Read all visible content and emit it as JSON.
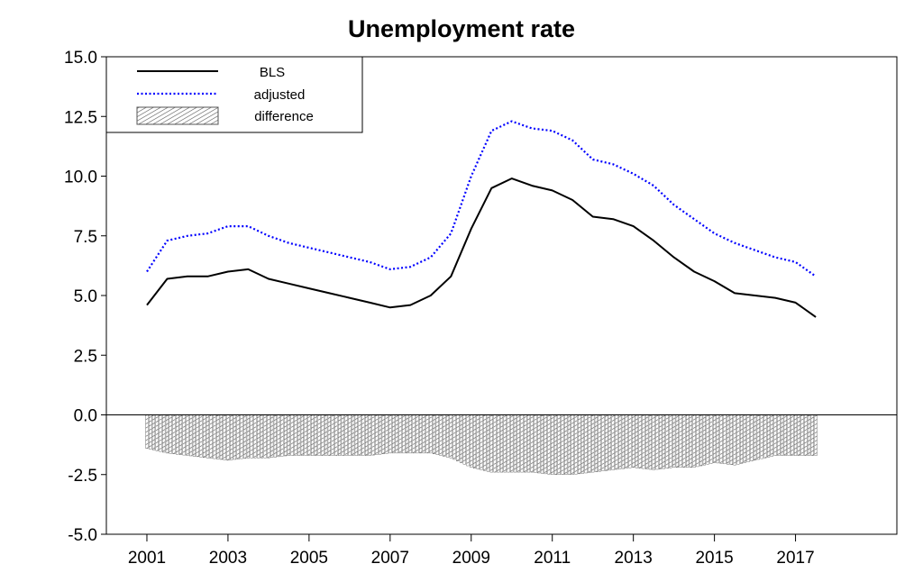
{
  "chart_data": {
    "type": "line",
    "title": "Unemployment rate",
    "xlabel": "",
    "ylabel": "",
    "ylim": [
      -5.0,
      15.0
    ],
    "xlim": [
      2000.0,
      2019.5
    ],
    "yticks": [
      "15.0",
      "12.5",
      "10.0",
      "7.5",
      "5.0",
      "2.5",
      "0.0",
      "-2.5",
      "-5.0"
    ],
    "xticks": [
      "2001",
      "2003",
      "2005",
      "2007",
      "2009",
      "2011",
      "2013",
      "2015",
      "2017"
    ],
    "grid": false,
    "legend_position": "top-left",
    "x": [
      2001.0,
      2001.5,
      2002.0,
      2002.5,
      2003.0,
      2003.5,
      2004.0,
      2004.5,
      2005.0,
      2005.5,
      2006.0,
      2006.5,
      2007.0,
      2007.5,
      2008.0,
      2008.5,
      2009.0,
      2009.5,
      2010.0,
      2010.5,
      2011.0,
      2011.5,
      2012.0,
      2012.5,
      2013.0,
      2013.5,
      2014.0,
      2014.5,
      2015.0,
      2015.5,
      2016.0,
      2016.5,
      2017.0,
      2017.5
    ],
    "series": [
      {
        "name": "BLS",
        "style": "solid",
        "color": "#000000",
        "values": [
          4.6,
          5.7,
          5.8,
          5.8,
          6.0,
          6.1,
          5.7,
          5.5,
          5.3,
          5.1,
          4.9,
          4.7,
          4.5,
          4.6,
          5.0,
          5.8,
          7.8,
          9.5,
          9.9,
          9.6,
          9.4,
          9.0,
          8.3,
          8.2,
          7.9,
          7.3,
          6.6,
          6.0,
          5.6,
          5.1,
          5.0,
          4.9,
          4.7,
          4.1
        ]
      },
      {
        "name": "adjusted",
        "style": "dotted",
        "color": "#0000ff",
        "values": [
          6.0,
          7.3,
          7.5,
          7.6,
          7.9,
          7.9,
          7.5,
          7.2,
          7.0,
          6.8,
          6.6,
          6.4,
          6.1,
          6.2,
          6.6,
          7.6,
          10.0,
          11.9,
          12.3,
          12.0,
          11.9,
          11.5,
          10.7,
          10.5,
          10.1,
          9.6,
          8.8,
          8.2,
          7.6,
          7.2,
          6.9,
          6.6,
          6.4,
          5.8
        ]
      },
      {
        "name": "difference",
        "style": "hatched-bars",
        "color": "#555555",
        "values": [
          -1.4,
          -1.6,
          -1.7,
          -1.8,
          -1.9,
          -1.8,
          -1.8,
          -1.7,
          -1.7,
          -1.7,
          -1.7,
          -1.7,
          -1.6,
          -1.6,
          -1.6,
          -1.8,
          -2.2,
          -2.4,
          -2.4,
          -2.4,
          -2.5,
          -2.5,
          -2.4,
          -2.3,
          -2.2,
          -2.3,
          -2.2,
          -2.2,
          -2.0,
          -2.1,
          -1.9,
          -1.7,
          -1.7,
          -1.7
        ]
      }
    ]
  }
}
